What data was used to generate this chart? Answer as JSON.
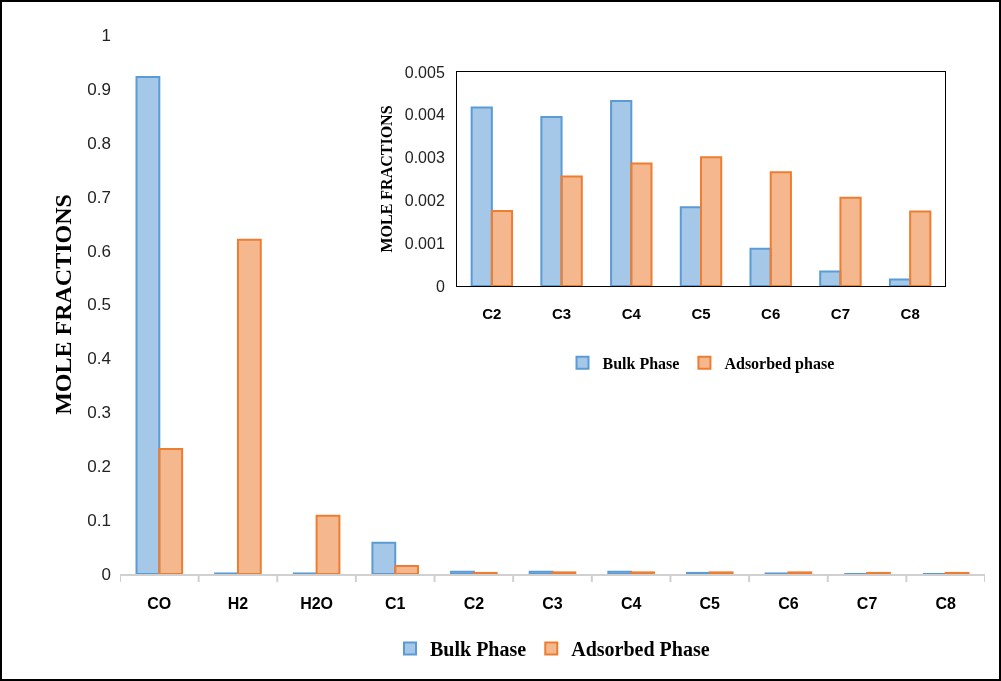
{
  "chart_data": [
    {
      "type": "bar",
      "ylabel": "MOLE FRACTIONS",
      "categories": [
        "CO",
        "H2",
        "H2O",
        "C1",
        "C2",
        "C3",
        "C4",
        "C5",
        "C6",
        "C7",
        "C8"
      ],
      "series": [
        {
          "name": "Bulk Phase",
          "color": "#5b9bd5",
          "values": [
            0.922,
            0.001,
            0.001,
            0.058,
            0.004,
            0.004,
            0.004,
            0.002,
            0.001,
            0,
            0
          ]
        },
        {
          "name": "Adsorbed Phase",
          "color": "#ed7d31",
          "values": [
            0.232,
            0.62,
            0.108,
            0.015,
            0.002,
            0.003,
            0.003,
            0.003,
            0.003,
            0.002,
            0.002
          ]
        }
      ],
      "ylim": [
        0,
        1
      ],
      "yticks": [
        0,
        0.1,
        0.2,
        0.3,
        0.4,
        0.5,
        0.6,
        0.7,
        0.8,
        0.9,
        1
      ],
      "legend": "bottom"
    },
    {
      "type": "bar",
      "ylabel": "MOLE FRACTIONS",
      "categories": [
        "C2",
        "C3",
        "C4",
        "C5",
        "C6",
        "C7",
        "C8"
      ],
      "series": [
        {
          "name": "Bulk Phase",
          "color": "#5b9bd5",
          "values": [
            0.00417,
            0.00395,
            0.00432,
            0.00184,
            0.00087,
            0.00034,
            0.00015
          ]
        },
        {
          "name": "Adsorbed phase",
          "color": "#ed7d31",
          "values": [
            0.00175,
            0.00256,
            0.00286,
            0.00301,
            0.00266,
            0.00206,
            0.00174
          ]
        }
      ],
      "ylim": [
        0,
        0.005
      ],
      "yticks": [
        0,
        0.001,
        0.002,
        0.003,
        0.004,
        0.005
      ],
      "legend": "bottom"
    }
  ]
}
